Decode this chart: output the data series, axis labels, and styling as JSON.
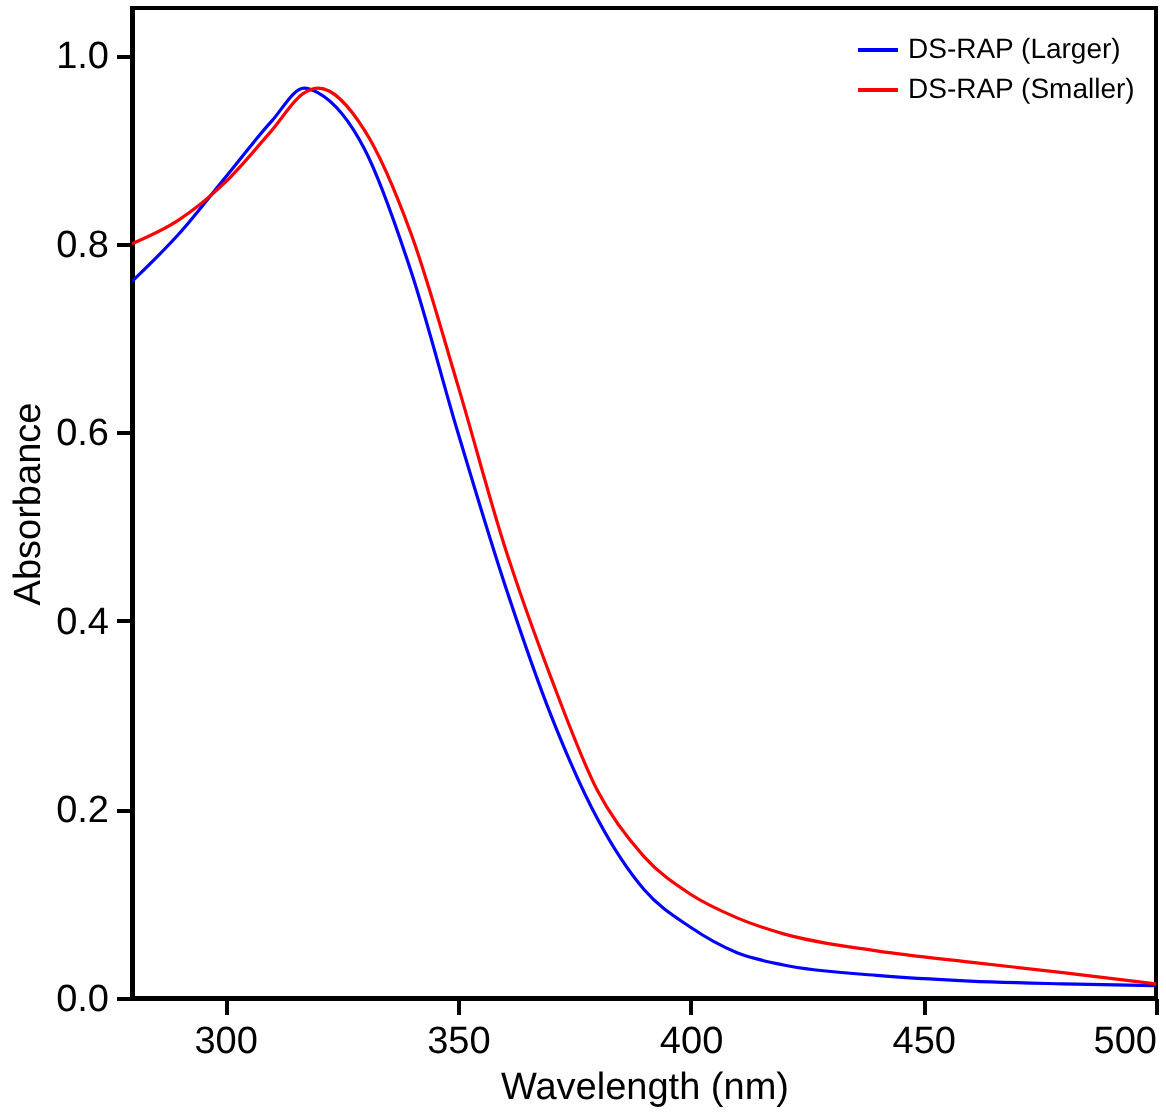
{
  "chart_data": {
    "type": "line",
    "xlabel": "Wavelength (nm)",
    "ylabel": "Absorbance",
    "xlim": [
      280,
      500
    ],
    "xticks": [
      300,
      350,
      400,
      450,
      500
    ],
    "ylim": [
      0,
      1.05
    ],
    "yticks": [
      {
        "value": 0,
        "label": "0.0"
      },
      0.2,
      0.4,
      0.6,
      0.8,
      {
        "value": 1,
        "label": "1.0"
      }
    ],
    "legend": "top right",
    "grid": false,
    "line_style": "solid",
    "marker": "none",
    "x": [
      280,
      290,
      300,
      310,
      317,
      320,
      330,
      340,
      350,
      360,
      370,
      380,
      390,
      400,
      410,
      420,
      440,
      460,
      480,
      500
    ],
    "series": [
      {
        "name": "DS-RAP (Larger)",
        "color": "#0000ff",
        "values": [
          0.76,
          0.81,
          0.87,
          0.93,
          0.965,
          0.96,
          0.9,
          0.77,
          0.6,
          0.44,
          0.3,
          0.19,
          0.115,
          0.075,
          0.048,
          0.035,
          0.024,
          0.018,
          0.015,
          0.013
        ]
      },
      {
        "name": "DS-RAP (Smaller)",
        "color": "#ff0000",
        "values": [
          0.8,
          0.825,
          0.865,
          0.92,
          0.96,
          0.965,
          0.92,
          0.81,
          0.65,
          0.48,
          0.34,
          0.22,
          0.15,
          0.11,
          0.085,
          0.068,
          0.05,
          0.038,
          0.027,
          0.015
        ]
      }
    ]
  }
}
